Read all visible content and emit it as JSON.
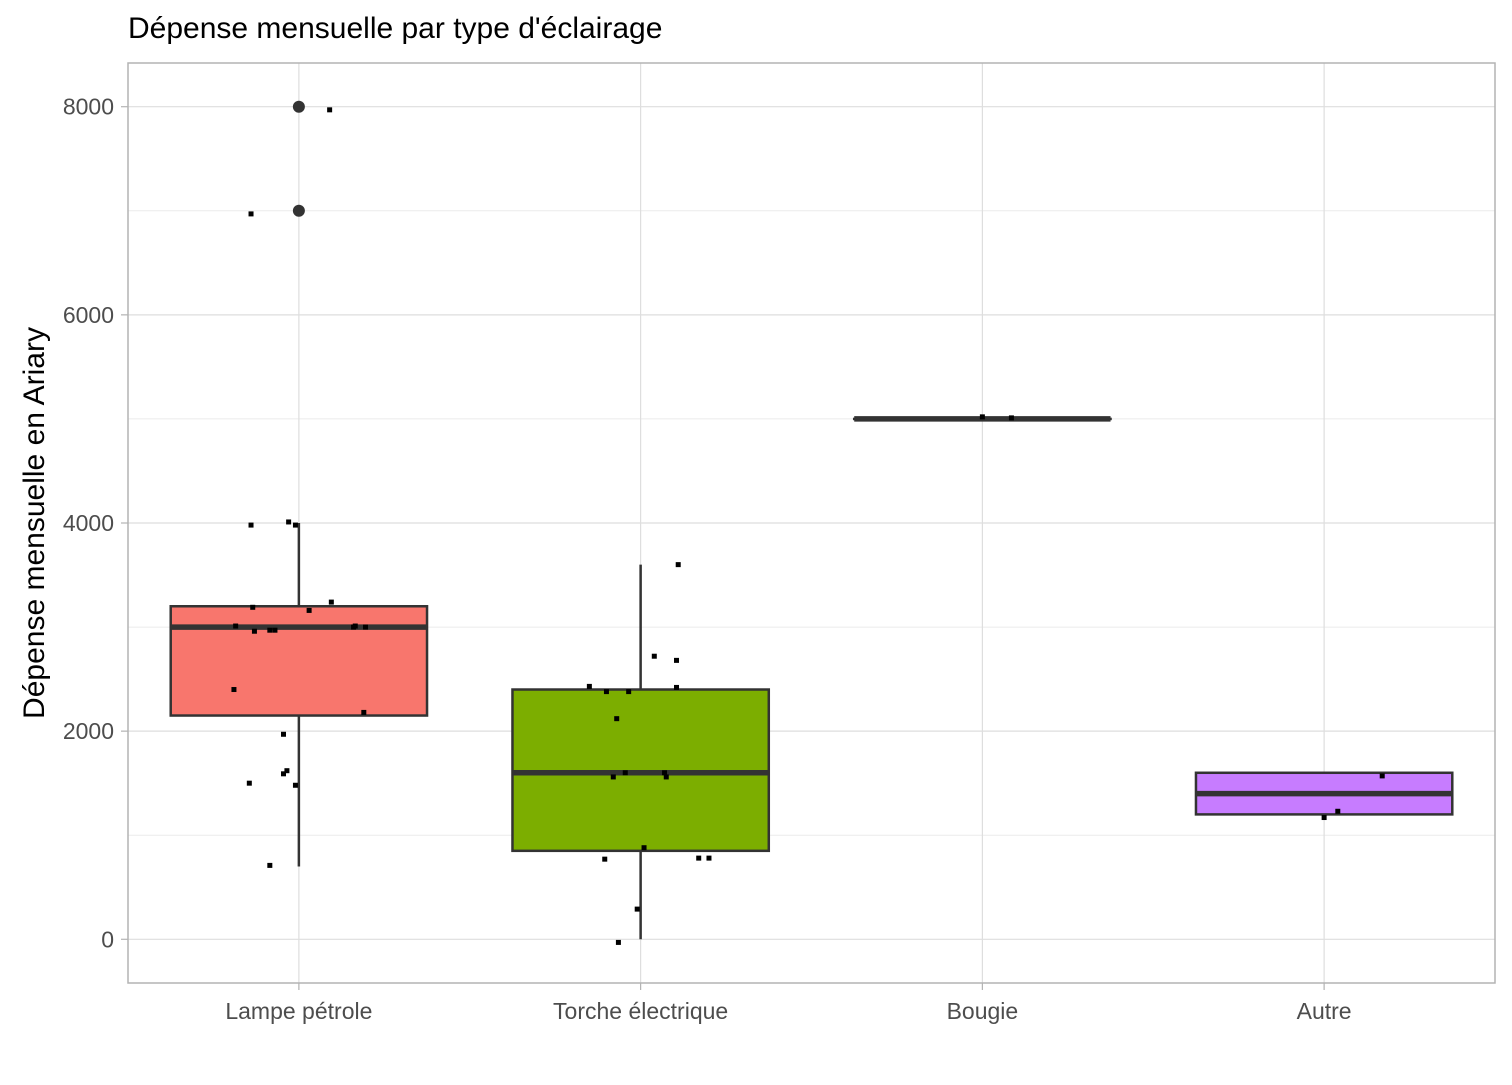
{
  "chart_data": {
    "type": "box",
    "title": "Dépense mensuelle par type d'éclairage",
    "xlabel": "",
    "ylabel": "Dépense mensuelle en Ariary",
    "categories": [
      "Lampe pétrole",
      "Torche électrique",
      "Bougie",
      "Autre"
    ],
    "ylim": [
      -420,
      8420
    ],
    "yticks": [
      0,
      2000,
      4000,
      6000,
      8000
    ],
    "grid": true,
    "legend": "none",
    "colors": [
      "#F8766D",
      "#7CAE00",
      "#00BFC4",
      "#C77CFF"
    ],
    "boxes": [
      {
        "category": "Lampe pétrole",
        "whisker_low": 700,
        "q1": 2150,
        "median": 3000,
        "q3": 3200,
        "whisker_high": 4000,
        "outliers": [
          7000,
          8000
        ]
      },
      {
        "category": "Torche électrique",
        "whisker_low": 0,
        "q1": 850,
        "median": 1600,
        "q3": 2400,
        "whisker_high": 3600,
        "outliers": []
      },
      {
        "category": "Bougie",
        "whisker_low": 5000,
        "q1": 5000,
        "median": 5000,
        "q3": 5000,
        "whisker_high": 5000,
        "outliers": []
      },
      {
        "category": "Autre",
        "whisker_low": 1200,
        "q1": 1200,
        "median": 1400,
        "q3": 1600,
        "whisker_high": 1600,
        "outliers": []
      }
    ],
    "points": [
      {
        "category": "Lampe pétrole",
        "jitter": -0.28,
        "y": 6970
      },
      {
        "category": "Lampe pétrole",
        "jitter": 0.18,
        "y": 7970
      },
      {
        "category": "Lampe pétrole",
        "jitter": -0.28,
        "y": 3980
      },
      {
        "category": "Lampe pétrole",
        "jitter": -0.06,
        "y": 4010
      },
      {
        "category": "Lampe pétrole",
        "jitter": -0.02,
        "y": 3980
      },
      {
        "category": "Lampe pétrole",
        "jitter": 0.19,
        "y": 3240
      },
      {
        "category": "Lampe pétrole",
        "jitter": -0.27,
        "y": 3190
      },
      {
        "category": "Lampe pétrole",
        "jitter": 0.06,
        "y": 3160
      },
      {
        "category": "Lampe pétrole",
        "jitter": -0.37,
        "y": 3010
      },
      {
        "category": "Lampe pétrole",
        "jitter": -0.26,
        "y": 2960
      },
      {
        "category": "Lampe pétrole",
        "jitter": -0.17,
        "y": 2970
      },
      {
        "category": "Lampe pétrole",
        "jitter": -0.14,
        "y": 2970
      },
      {
        "category": "Lampe pétrole",
        "jitter": 0.32,
        "y": 3000
      },
      {
        "category": "Lampe pétrole",
        "jitter": 0.33,
        "y": 3010
      },
      {
        "category": "Lampe pétrole",
        "jitter": 0.39,
        "y": 3000
      },
      {
        "category": "Lampe pétrole",
        "jitter": -0.38,
        "y": 2400
      },
      {
        "category": "Lampe pétrole",
        "jitter": 0.38,
        "y": 2180
      },
      {
        "category": "Lampe pétrole",
        "jitter": -0.09,
        "y": 1970
      },
      {
        "category": "Lampe pétrole",
        "jitter": -0.09,
        "y": 1590
      },
      {
        "category": "Lampe pétrole",
        "jitter": -0.07,
        "y": 1620
      },
      {
        "category": "Lampe pétrole",
        "jitter": -0.02,
        "y": 1480
      },
      {
        "category": "Lampe pétrole",
        "jitter": -0.29,
        "y": 1500
      },
      {
        "category": "Lampe pétrole",
        "jitter": -0.17,
        "y": 710
      },
      {
        "category": "Torche électrique",
        "jitter": 0.22,
        "y": 3600
      },
      {
        "category": "Torche électrique",
        "jitter": 0.08,
        "y": 2720
      },
      {
        "category": "Torche électrique",
        "jitter": 0.21,
        "y": 2680
      },
      {
        "category": "Torche électrique",
        "jitter": -0.3,
        "y": 2430
      },
      {
        "category": "Torche électrique",
        "jitter": -0.2,
        "y": 2380
      },
      {
        "category": "Torche électrique",
        "jitter": -0.07,
        "y": 2380
      },
      {
        "category": "Torche électrique",
        "jitter": 0.21,
        "y": 2420
      },
      {
        "category": "Torche électrique",
        "jitter": -0.14,
        "y": 2120
      },
      {
        "category": "Torche électrique",
        "jitter": -0.16,
        "y": 1560
      },
      {
        "category": "Torche électrique",
        "jitter": -0.09,
        "y": 1600
      },
      {
        "category": "Torche électrique",
        "jitter": 0.14,
        "y": 1600
      },
      {
        "category": "Torche électrique",
        "jitter": 0.15,
        "y": 1560
      },
      {
        "category": "Torche électrique",
        "jitter": 0.02,
        "y": 880
      },
      {
        "category": "Torche électrique",
        "jitter": -0.21,
        "y": 770
      },
      {
        "category": "Torche électrique",
        "jitter": 0.34,
        "y": 780
      },
      {
        "category": "Torche électrique",
        "jitter": 0.4,
        "y": 780
      },
      {
        "category": "Torche électrique",
        "jitter": -0.02,
        "y": 290
      },
      {
        "category": "Torche électrique",
        "jitter": -0.13,
        "y": -30
      },
      {
        "category": "Bougie",
        "jitter": 0.0,
        "y": 5020
      },
      {
        "category": "Bougie",
        "jitter": 0.17,
        "y": 5010
      },
      {
        "category": "Autre",
        "jitter": 0.0,
        "y": 1170
      },
      {
        "category": "Autre",
        "jitter": 0.08,
        "y": 1230
      },
      {
        "category": "Autre",
        "jitter": 0.34,
        "y": 1570
      }
    ]
  }
}
